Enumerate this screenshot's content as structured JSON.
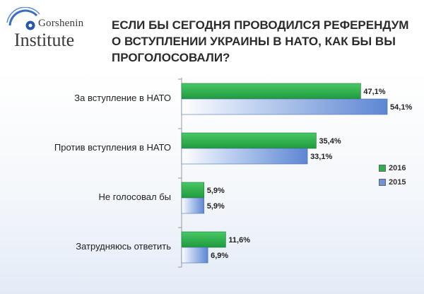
{
  "header": {
    "logo_brand": "Gorshenin",
    "logo_sub": "Institute",
    "title": "ЕСЛИ БЫ СЕГОДНЯ ПРОВОДИЛСЯ РЕФЕРЕНДУМ О ВСТУПЛЕНИИ УКРАИНЫ В НАТО, КАК БЫ ВЫ ПРОГОЛОСОВАЛИ?"
  },
  "colors": {
    "series_2016": "#2bb04a",
    "series_2015": "#6f93d8",
    "axis": "#9a9a9a"
  },
  "chart_data": {
    "type": "bar",
    "orientation": "horizontal",
    "categories": [
      "За вступление в НАТО",
      "Против вступления в НАТО",
      "Не голосовал бы",
      "Затрудняюсь ответить"
    ],
    "series": [
      {
        "name": "2016",
        "values": [
          47.1,
          35.4,
          5.9,
          11.6
        ],
        "labels": [
          "47,1%",
          "35,4%",
          "5,9%",
          "11,6%"
        ]
      },
      {
        "name": "2015",
        "values": [
          54.1,
          33.1,
          5.9,
          6.9
        ],
        "labels": [
          "54,1%",
          "33,1%",
          "5,9%",
          "6,9%"
        ]
      }
    ],
    "xlim": [
      0,
      60
    ],
    "grid": false,
    "legend_position": "right"
  }
}
